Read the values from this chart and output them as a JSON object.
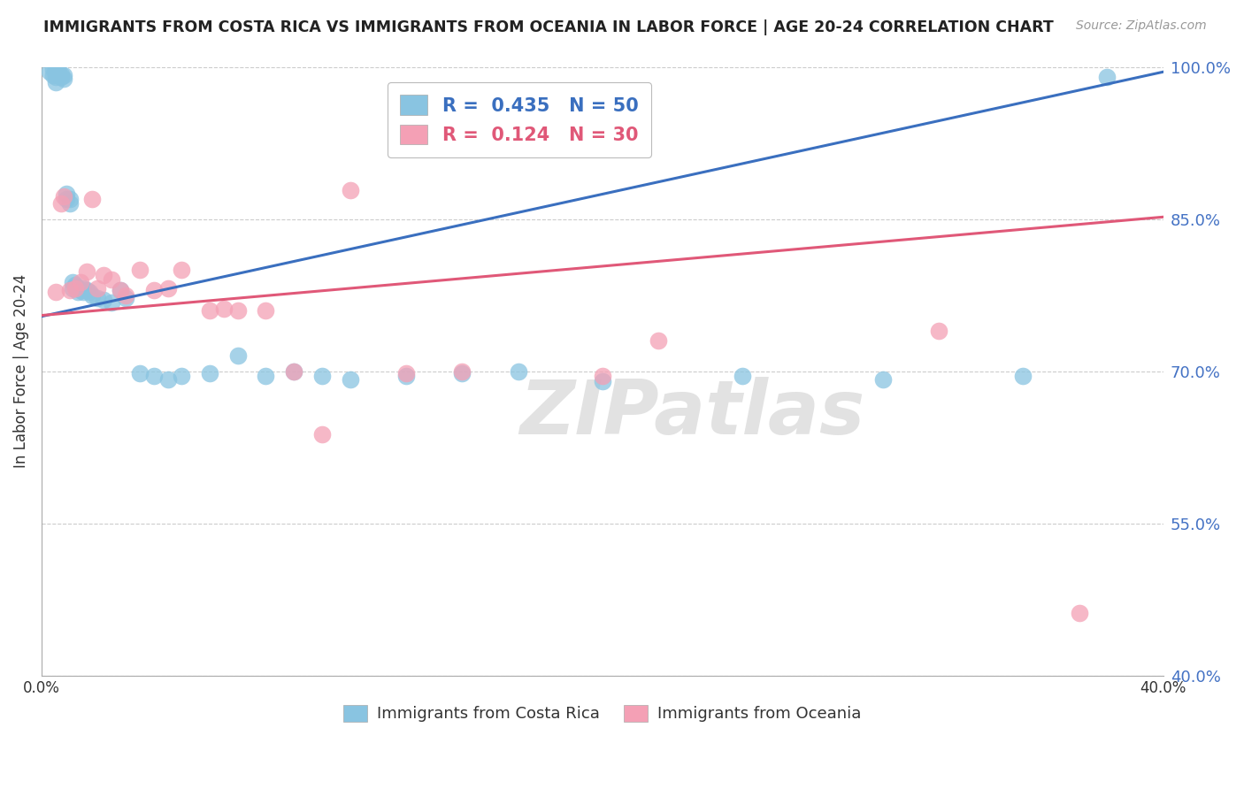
{
  "title": "IMMIGRANTS FROM COSTA RICA VS IMMIGRANTS FROM OCEANIA IN LABOR FORCE | AGE 20-24 CORRELATION CHART",
  "source": "Source: ZipAtlas.com",
  "ylabel": "In Labor Force | Age 20-24",
  "xlim": [
    0.0,
    0.4
  ],
  "ylim": [
    0.4,
    1.0
  ],
  "yticks": [
    0.4,
    0.55,
    0.7,
    0.85,
    1.0
  ],
  "ytick_labels": [
    "40.0%",
    "55.0%",
    "70.0%",
    "85.0%",
    "100.0%"
  ],
  "blue_color": "#89c4e1",
  "pink_color": "#f4a0b5",
  "blue_line_color": "#3a6fbf",
  "pink_line_color": "#e05878",
  "R_blue": 0.435,
  "N_blue": 50,
  "R_pink": 0.124,
  "N_pink": 30,
  "watermark_text": "ZIPatlas",
  "blue_label": "Immigrants from Costa Rica",
  "pink_label": "Immigrants from Oceania",
  "blue_x": [
    0.003,
    0.004,
    0.004,
    0.005,
    0.005,
    0.005,
    0.006,
    0.007,
    0.007,
    0.008,
    0.008,
    0.009,
    0.009,
    0.01,
    0.01,
    0.011,
    0.011,
    0.012,
    0.012,
    0.013,
    0.013,
    0.014,
    0.015,
    0.015,
    0.016,
    0.017,
    0.018,
    0.02,
    0.022,
    0.025,
    0.028,
    0.03,
    0.035,
    0.04,
    0.045,
    0.05,
    0.06,
    0.07,
    0.08,
    0.09,
    0.1,
    0.11,
    0.13,
    0.15,
    0.17,
    0.2,
    0.25,
    0.3,
    0.35,
    0.38
  ],
  "blue_y": [
    0.995,
    0.998,
    0.992,
    0.997,
    0.99,
    0.985,
    0.995,
    0.993,
    0.99,
    0.988,
    0.992,
    0.875,
    0.87,
    0.87,
    0.865,
    0.788,
    0.782,
    0.783,
    0.785,
    0.778,
    0.782,
    0.78,
    0.778,
    0.782,
    0.78,
    0.778,
    0.775,
    0.772,
    0.77,
    0.768,
    0.78,
    0.772,
    0.698,
    0.695,
    0.692,
    0.695,
    0.698,
    0.715,
    0.695,
    0.7,
    0.695,
    0.692,
    0.695,
    0.698,
    0.7,
    0.69,
    0.695,
    0.692,
    0.695,
    0.99
  ],
  "pink_x": [
    0.005,
    0.007,
    0.008,
    0.01,
    0.012,
    0.014,
    0.016,
    0.018,
    0.02,
    0.022,
    0.025,
    0.028,
    0.03,
    0.035,
    0.04,
    0.045,
    0.05,
    0.06,
    0.065,
    0.07,
    0.08,
    0.09,
    0.1,
    0.11,
    0.13,
    0.15,
    0.2,
    0.22,
    0.32,
    0.37
  ],
  "pink_y": [
    0.778,
    0.865,
    0.872,
    0.78,
    0.782,
    0.788,
    0.798,
    0.87,
    0.782,
    0.795,
    0.79,
    0.78,
    0.775,
    0.8,
    0.78,
    0.782,
    0.8,
    0.76,
    0.762,
    0.76,
    0.76,
    0.7,
    0.638,
    0.878,
    0.698,
    0.7,
    0.695,
    0.73,
    0.74,
    0.462
  ],
  "blue_line_x": [
    0.0,
    0.4
  ],
  "blue_line_y": [
    0.754,
    0.995
  ],
  "pink_line_x": [
    0.0,
    0.4
  ],
  "pink_line_y": [
    0.755,
    0.852
  ]
}
